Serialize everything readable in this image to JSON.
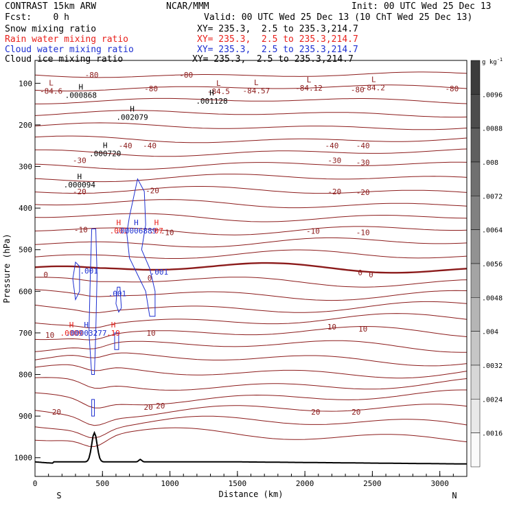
{
  "header": {
    "model": "CONTRAST 15km ARW",
    "center": "NCAR/MMM",
    "init": "Init: 00 UTC Wed 25 Dec 13",
    "fcst": "Fcst:    0 h",
    "valid": "Valid: 00 UTC Wed 25 Dec 13 (10 ChT Wed 25 Dec 13)"
  },
  "fields": [
    {
      "name": "Snow mixing ratio",
      "color": "#000000",
      "xy": ""
    },
    {
      "name": "Rain water mixing ratio",
      "color": "#e8201b",
      "xy": "XY= 235.3,  2.5 to 235.3,214.7"
    },
    {
      "name": "Cloud water mixing ratio",
      "color": "#1d2fd0",
      "xy": "XY= 235.3,  2.5 to 235.3,214.7"
    },
    {
      "name": "Cloud ice mixing ratio",
      "color": "#000000",
      "xy": "XY= 235.3,  2.5 to 235.3,214.7"
    }
  ],
  "snow_xy": "XY= 235.3,  2.5 to 235.3,214.7",
  "chart_data": {
    "type": "contour",
    "xlabel": "Distance (km)",
    "ylabel": "Pressure (hPa)",
    "x_ticks": [
      0,
      500,
      1000,
      1500,
      2000,
      2500,
      3000
    ],
    "y_ticks": [
      100,
      200,
      300,
      400,
      500,
      600,
      700,
      800,
      900,
      1000
    ],
    "xlim": [
      0,
      3200
    ],
    "ylim": [
      45,
      1045
    ],
    "x_end_labels": {
      "left": "S",
      "right": "N"
    },
    "colorbar": {
      "unit": "g kg",
      "unit_sup": "-1",
      "levels": [
        ".0096",
        ".0088",
        ".008",
        ".0072",
        ".0064",
        ".0056",
        ".0048",
        ".004",
        ".0032",
        ".0024",
        ".0016"
      ]
    },
    "temperature_labels": [
      {
        "text": "-80",
        "x": 420,
        "p": 80
      },
      {
        "text": "-80",
        "x": 1120,
        "p": 80
      },
      {
        "text": "-80",
        "x": 860,
        "p": 113
      },
      {
        "text": "-80",
        "x": 2390,
        "p": 115
      },
      {
        "text": "-80",
        "x": 3090,
        "p": 113
      },
      {
        "text": "-40",
        "x": 670,
        "p": 250
      },
      {
        "text": "-40",
        "x": 850,
        "p": 250
      },
      {
        "text": "-40",
        "x": 2200,
        "p": 250
      },
      {
        "text": "-40",
        "x": 2430,
        "p": 250
      },
      {
        "text": "-30",
        "x": 330,
        "p": 285
      },
      {
        "text": "-30",
        "x": 2220,
        "p": 285
      },
      {
        "text": "-30",
        "x": 2430,
        "p": 290
      },
      {
        "text": "-20",
        "x": 330,
        "p": 360
      },
      {
        "text": "-20",
        "x": 870,
        "p": 358
      },
      {
        "text": "-20",
        "x": 2220,
        "p": 360
      },
      {
        "text": "-20",
        "x": 2430,
        "p": 362
      },
      {
        "text": "-10",
        "x": 340,
        "p": 452
      },
      {
        "text": "-10",
        "x": 980,
        "p": 458
      },
      {
        "text": "-10",
        "x": 2060,
        "p": 455
      },
      {
        "text": "-10",
        "x": 2430,
        "p": 458
      },
      {
        "text": "0",
        "x": 80,
        "p": 560
      },
      {
        "text": "0",
        "x": 850,
        "p": 568
      },
      {
        "text": "0",
        "x": 2410,
        "p": 555
      },
      {
        "text": "0",
        "x": 2490,
        "p": 560
      },
      {
        "text": "10",
        "x": 110,
        "p": 705
      },
      {
        "text": "10",
        "x": 860,
        "p": 700
      },
      {
        "text": "10",
        "x": 2200,
        "p": 685
      },
      {
        "text": "10",
        "x": 2430,
        "p": 690
      },
      {
        "text": "20",
        "x": 160,
        "p": 890
      },
      {
        "text": "20",
        "x": 840,
        "p": 878
      },
      {
        "text": "20",
        "x": 930,
        "p": 875
      },
      {
        "text": "20",
        "x": 2080,
        "p": 890
      },
      {
        "text": "20",
        "x": 2380,
        "p": 890
      }
    ],
    "extrema": [
      {
        "type": "L",
        "value": "-84.6",
        "x": 120,
        "p": 115
      },
      {
        "type": "H",
        "value": ".000868",
        "x": 340,
        "p": 125
      },
      {
        "type": "L",
        "value": "-84.5",
        "x": 1360,
        "p": 116
      },
      {
        "type": "H",
        "value": ".001128",
        "x": 1310,
        "p": 139
      },
      {
        "type": "L",
        "value": "-84.57",
        "x": 1640,
        "p": 114
      },
      {
        "type": "L",
        "value": "-84.12",
        "x": 2030,
        "p": 108
      },
      {
        "type": "L",
        "value": "-84.2",
        "x": 2510,
        "p": 107
      },
      {
        "type": "H",
        "value": ".002079",
        "x": 720,
        "p": 178
      },
      {
        "type": "H",
        "value": ".000720",
        "x": 520,
        "p": 265
      },
      {
        "type": "H",
        "value": ".000094",
        "x": 330,
        "p": 340
      },
      {
        "type": "H",
        "value": ".001",
        "x": 620,
        "p": 451,
        "color": "red"
      },
      {
        "type": "H",
        "value": ".00006889",
        "x": 750,
        "p": 451,
        "color": "blue"
      },
      {
        "type": "H",
        "value": ".07",
        "x": 900,
        "p": 451,
        "color": "red"
      },
      {
        "type": "H",
        "value": ".0009",
        "x": 270,
        "p": 697,
        "color": "red"
      },
      {
        "type": "H",
        "value": ".00003277",
        "x": 380,
        "p": 697,
        "color": "blue"
      },
      {
        "type": "H",
        "value": ".19",
        "x": 580,
        "p": 697,
        "color": "red"
      }
    ],
    "cloud_water_labels": [
      {
        "text": ".001",
        "x": 400,
        "p": 557
      },
      {
        "text": ".001",
        "x": 610,
        "p": 612
      },
      {
        "text": ".001",
        "x": 920,
        "p": 560
      }
    ]
  }
}
